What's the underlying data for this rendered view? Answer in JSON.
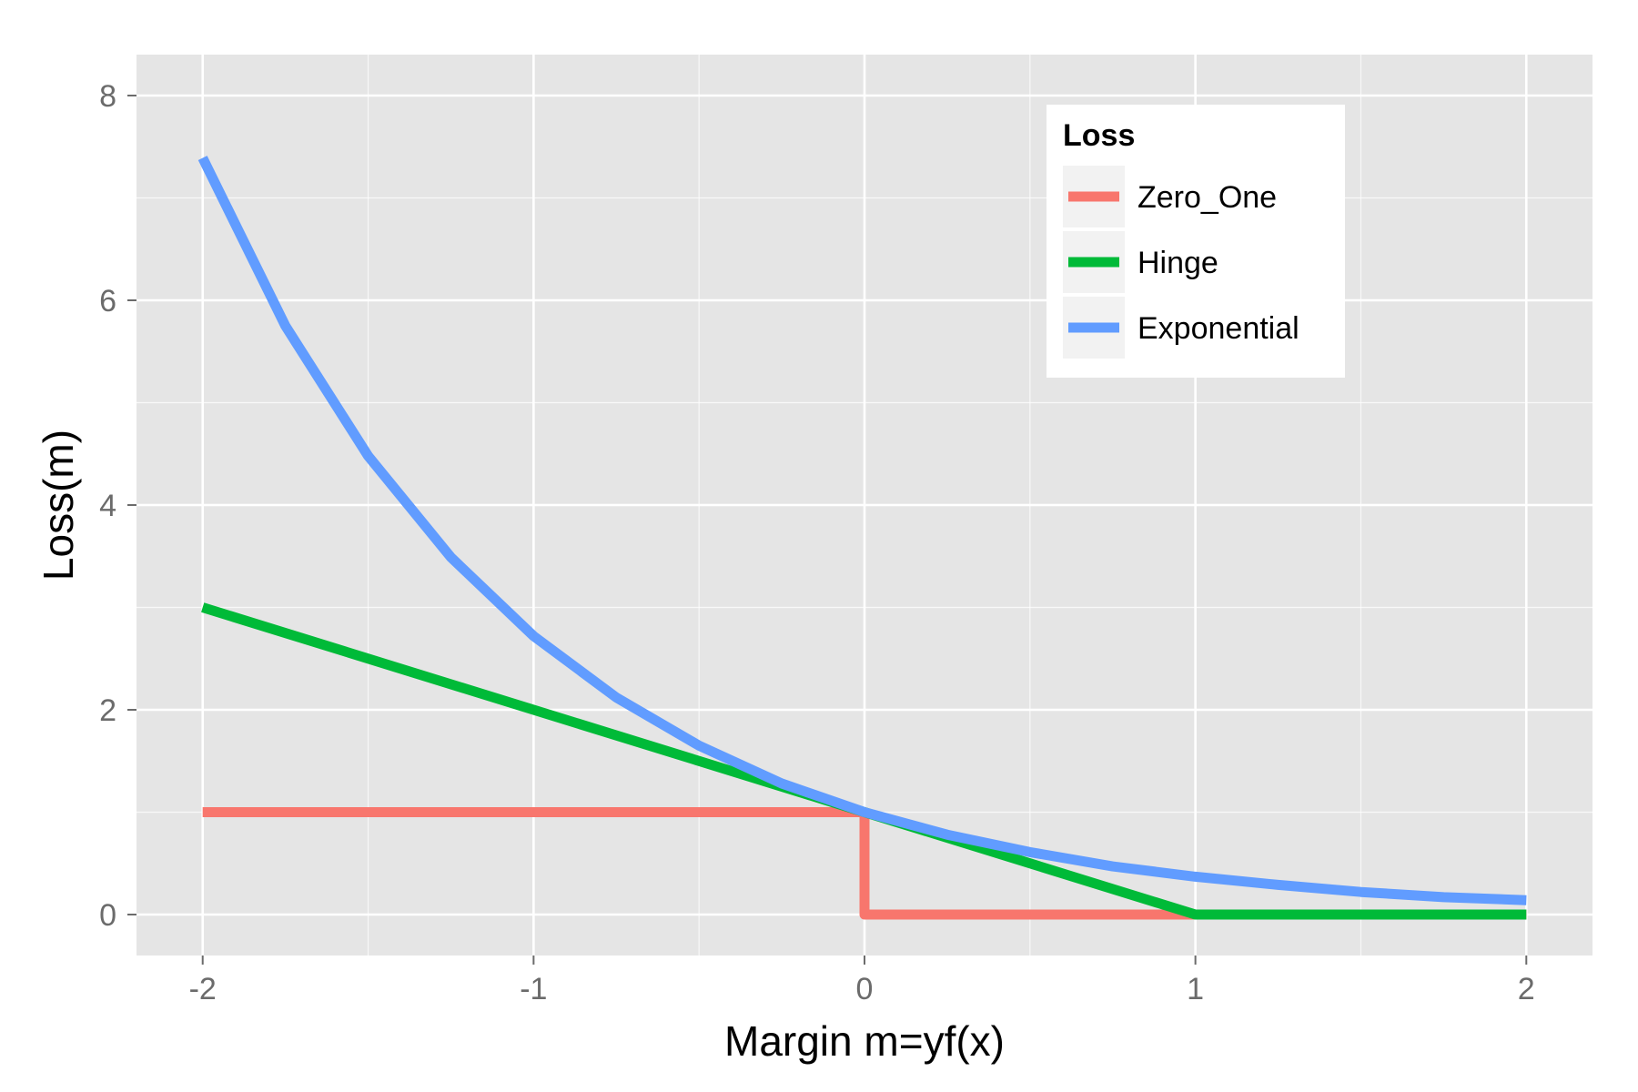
{
  "chart_data": {
    "type": "line",
    "title": "",
    "xlabel": "Margin m=yf(x)",
    "ylabel": "Loss(m)",
    "xlim": [
      -2.2,
      2.2
    ],
    "ylim": [
      -0.4,
      8.4
    ],
    "x_ticks": [
      -2,
      -1,
      0,
      1,
      2
    ],
    "x_tick_labels": [
      "-2",
      "-1",
      "0",
      "1",
      "2"
    ],
    "y_ticks": [
      0,
      2,
      4,
      6,
      8
    ],
    "y_tick_labels": [
      "0",
      "2",
      "4",
      "6",
      "8"
    ],
    "grid": true,
    "legend": {
      "title": "Loss",
      "position": "top-right"
    },
    "colors": {
      "panel": "#e5e5e5",
      "grid": "#ffffff"
    },
    "series": [
      {
        "name": "Zero_One",
        "color": "#F8766D",
        "x": [
          -2,
          0,
          0,
          2
        ],
        "y": [
          1,
          1,
          0,
          0
        ]
      },
      {
        "name": "Hinge",
        "color": "#00BA38",
        "x": [
          -2,
          1,
          2
        ],
        "y": [
          3,
          0,
          0
        ]
      },
      {
        "name": "Exponential",
        "color": "#619CFF",
        "x": [
          -2,
          -1.75,
          -1.5,
          -1.25,
          -1,
          -0.75,
          -0.5,
          -0.25,
          0,
          0.25,
          0.5,
          0.75,
          1,
          1.25,
          1.5,
          1.75,
          2
        ],
        "y": [
          7.39,
          5.75,
          4.48,
          3.49,
          2.72,
          2.12,
          1.65,
          1.28,
          1.0,
          0.78,
          0.61,
          0.47,
          0.37,
          0.29,
          0.22,
          0.17,
          0.14
        ]
      }
    ]
  }
}
